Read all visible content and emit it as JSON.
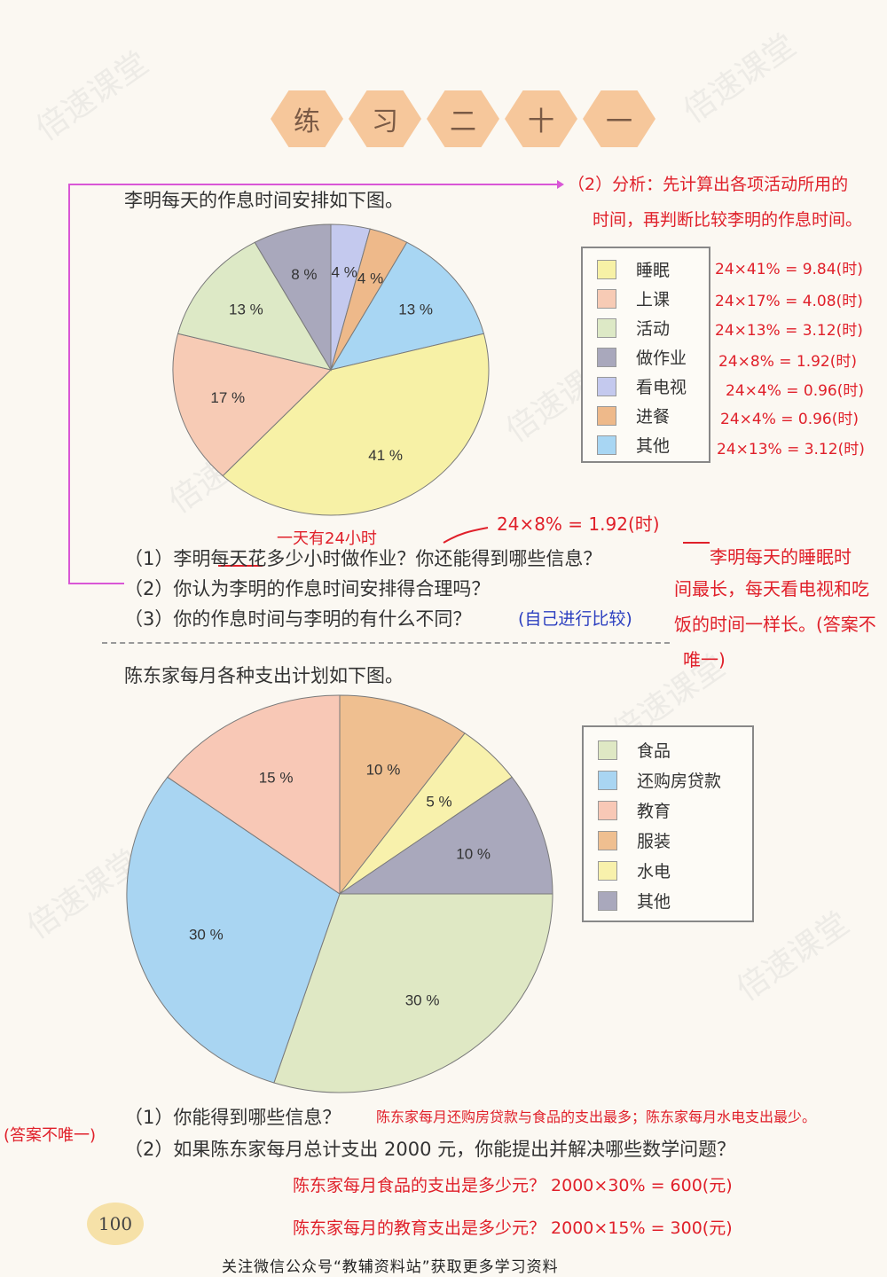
{
  "header": {
    "chars": [
      "练",
      "习",
      "二",
      "十",
      "一"
    ]
  },
  "q1": {
    "intro": "李明每天的作息时间安排如下图。",
    "questions": [
      "（1）李明每天花多少小时做作业？你还能得到哪些信息？",
      "（2）你认为李明的作息时间安排得合理吗？",
      "（3）你的作息时间与李明的有什么不同？"
    ],
    "chart_data": {
      "type": "pie",
      "labels": [
        "睡眠",
        "上课",
        "活动",
        "做作业",
        "看电视",
        "进餐",
        "其他"
      ],
      "values": [
        41,
        17,
        13,
        8,
        4,
        4,
        13
      ],
      "value_labels": [
        "41 %",
        "17 %",
        "13 %",
        "8 %",
        "4 %",
        "4 %",
        "13 %"
      ],
      "colors": [
        "#f7f1a6",
        "#f7cbb5",
        "#dde9c6",
        "#a9a8bc",
        "#c4c9ee",
        "#eeb98a",
        "#a8d6f3"
      ],
      "legend_position": "right"
    }
  },
  "annotations1": {
    "analysis_1": "（2）分析：先计算出各项活动所用的",
    "analysis_2": "时间，再判断比较李明的作息时间。",
    "calcs": [
      "24×41% = 9.84(时)",
      "24×17% = 4.08(时)",
      "24×13% = 3.12(时)",
      "24×8% = 1.92(时)",
      "24×4% = 0.96(时)",
      "24×4% = 0.96(时)",
      "24×13% = 3.12(时)"
    ],
    "day_note": "一天有24小时",
    "homework_calc": "24×8% = 1.92(时)",
    "answer_1": "李明每天的睡眠时",
    "answer_2": "间最长，每天看电视和吃",
    "answer_3": "饭的时间一样长。(答案不",
    "answer_4": "唯一)",
    "compare_note": "(自己进行比较)"
  },
  "q2": {
    "intro": "陈东家每月各种支出计划如下图。",
    "questions": [
      "（1）你能得到哪些信息？",
      "（2）如果陈东家每月总计支出 2000 元，你能提出并解决哪些数学问题？"
    ],
    "chart_data": {
      "type": "pie",
      "labels": [
        "食品",
        "还购房贷款",
        "教育",
        "服装",
        "水电",
        "其他"
      ],
      "values": [
        30,
        30,
        15,
        10,
        5,
        10
      ],
      "value_labels": [
        "30 %",
        "30 %",
        "15 %",
        "10 %",
        "5 %",
        "10 %"
      ],
      "colors": [
        "#dfe8c4",
        "#a9d5f2",
        "#f8c8b6",
        "#efbf90",
        "#f8f1ac",
        "#a9a8bc"
      ],
      "legend_position": "right"
    }
  },
  "annotations2": {
    "side_note": "(答案不唯一)",
    "info": "陈东家每月还购房贷款与食品的支出最多；陈东家每月水电支出最少。",
    "p1": "陈东家每月食品的支出是多少元？  2000×30% = 600(元)",
    "p2": "陈东家每月的教育支出是多少元？  2000×15% = 300(元)"
  },
  "footer": {
    "page_number": "100",
    "note": "关注微信公众号“教辅资料站”获取更多学习资料"
  },
  "watermark": "倍速课堂"
}
